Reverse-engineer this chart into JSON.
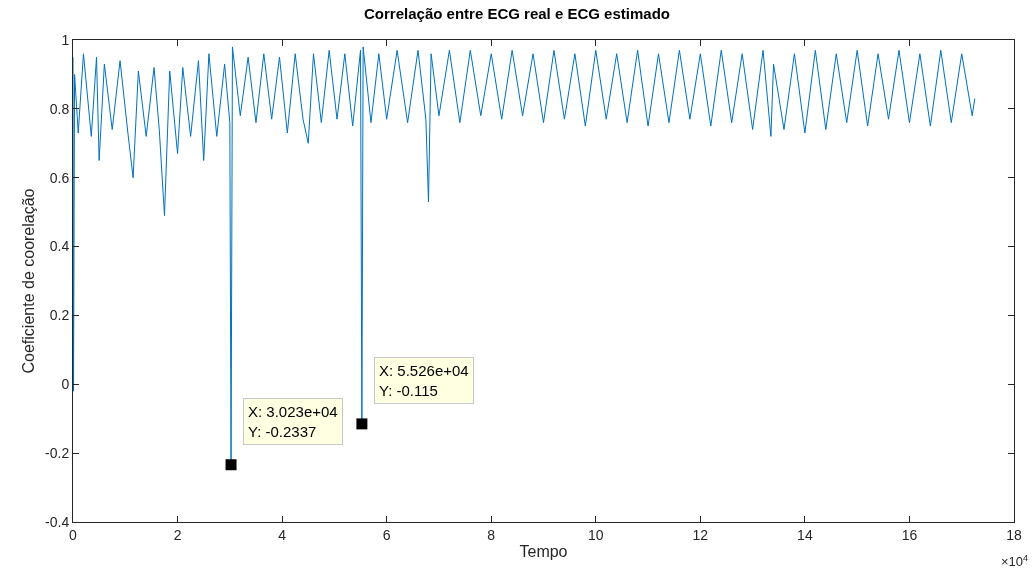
{
  "chart_data": {
    "type": "line",
    "title": "Correlação entre ECG real e ECG estimado",
    "xlabel": "Tempo",
    "ylabel": "Coeficiente de coorelação",
    "xlim": [
      0,
      18
    ],
    "xticks": [
      0,
      2,
      4,
      6,
      8,
      10,
      12,
      14,
      16,
      18
    ],
    "ylim": [
      -0.4,
      1
    ],
    "yticks": [
      -0.4,
      -0.2,
      0,
      0.2,
      0.4,
      0.6,
      0.8,
      1
    ],
    "marker": "none",
    "line_style": "solid",
    "annotations": [
      "×10$^{4}$",
      {
        "text": "X: 3.023e+04\nY: -0.2337",
        "x": 3.023,
        "y": -0.2337
      },
      {
        "text": "X: 5.526e+04\nY: -0.115",
        "x": 5.526,
        "y": -0.115
      }
    ],
    "series": [
      {
        "color": "#0072bd",
        "x": [
          0,
          0.01,
          0.03,
          0.1,
          0.2,
          0.35,
          0.45,
          0.5,
          0.6,
          0.75,
          0.9,
          1.05,
          1.15,
          1.25,
          1.4,
          1.55,
          1.65,
          1.75,
          1.85,
          2.0,
          2.1,
          2.25,
          2.4,
          2.5,
          2.6,
          2.75,
          2.9,
          3.0,
          3.023,
          3.05,
          3.2,
          3.35,
          3.5,
          3.65,
          3.8,
          3.95,
          4.1,
          4.25,
          4.4,
          4.5,
          4.6,
          4.75,
          4.9,
          5.05,
          5.2,
          5.35,
          5.5,
          5.526,
          5.55,
          5.7,
          5.85,
          6.0,
          6.2,
          6.4,
          6.6,
          6.75,
          6.8,
          6.85,
          7.0,
          7.2,
          7.4,
          7.6,
          7.8,
          8.0,
          8.2,
          8.4,
          8.6,
          8.8,
          9.0,
          9.2,
          9.4,
          9.6,
          9.8,
          10.0,
          10.2,
          10.4,
          10.6,
          10.8,
          11.0,
          11.2,
          11.4,
          11.6,
          11.8,
          12.0,
          12.2,
          12.4,
          12.6,
          12.8,
          13.0,
          13.2,
          13.35,
          13.4,
          13.6,
          13.8,
          14.0,
          14.2,
          14.4,
          14.6,
          14.8,
          15.0,
          15.2,
          15.4,
          15.6,
          15.8,
          16.0,
          16.2,
          16.4,
          16.6,
          16.8,
          17.0,
          17.2,
          17.25
        ],
        "values": [
          0.95,
          -0.02,
          0.9,
          0.73,
          0.96,
          0.72,
          0.95,
          0.65,
          0.93,
          0.74,
          0.94,
          0.73,
          0.6,
          0.91,
          0.72,
          0.92,
          0.74,
          0.49,
          0.91,
          0.67,
          0.92,
          0.72,
          0.94,
          0.65,
          0.96,
          0.72,
          0.93,
          0.76,
          -0.2337,
          0.98,
          0.78,
          0.95,
          0.76,
          0.96,
          0.77,
          0.95,
          0.73,
          0.96,
          0.77,
          0.7,
          0.96,
          0.76,
          0.97,
          0.77,
          0.96,
          0.75,
          0.97,
          -0.115,
          0.98,
          0.76,
          0.96,
          0.77,
          0.97,
          0.76,
          0.97,
          0.77,
          0.53,
          0.96,
          0.78,
          0.97,
          0.76,
          0.97,
          0.78,
          0.96,
          0.77,
          0.97,
          0.78,
          0.96,
          0.76,
          0.97,
          0.77,
          0.96,
          0.75,
          0.97,
          0.77,
          0.96,
          0.76,
          0.97,
          0.75,
          0.96,
          0.76,
          0.97,
          0.77,
          0.96,
          0.75,
          0.97,
          0.76,
          0.96,
          0.74,
          0.97,
          0.72,
          0.93,
          0.74,
          0.96,
          0.73,
          0.97,
          0.74,
          0.96,
          0.76,
          0.97,
          0.75,
          0.96,
          0.77,
          0.97,
          0.76,
          0.96,
          0.75,
          0.97,
          0.76,
          0.96,
          0.78,
          0.83
        ]
      }
    ]
  }
}
